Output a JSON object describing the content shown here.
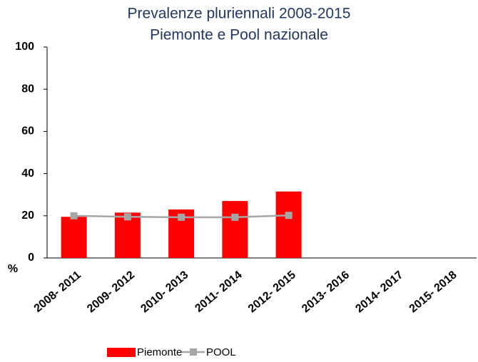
{
  "chart_data": {
    "type": "bar",
    "subtitle": [
      "Prevalenze pluriennali 2008-2015",
      "Piemonte e Pool nazionale"
    ],
    "y_label": "%",
    "categories": [
      "2008- 2011",
      "2009- 2012",
      "2010- 2013",
      "2011- 2014",
      "2012- 2015",
      "2013- 2016",
      "2014- 2017",
      "2015- 2018"
    ],
    "series": [
      {
        "name": "Piemonte",
        "color": "#ff0000",
        "type": "bar",
        "values": [
          19.5,
          21.5,
          23,
          27,
          31.5,
          null,
          null,
          null
        ]
      },
      {
        "name": "POOL",
        "color": "#a6a6a6",
        "type": "line",
        "values": [
          20,
          19.5,
          19.3,
          19.3,
          20.2,
          null,
          null,
          null
        ]
      }
    ],
    "ylim": [
      0,
      100
    ],
    "yticks": [
      0,
      20,
      40,
      60,
      80,
      100
    ],
    "grid": false,
    "legend": "bottom"
  }
}
